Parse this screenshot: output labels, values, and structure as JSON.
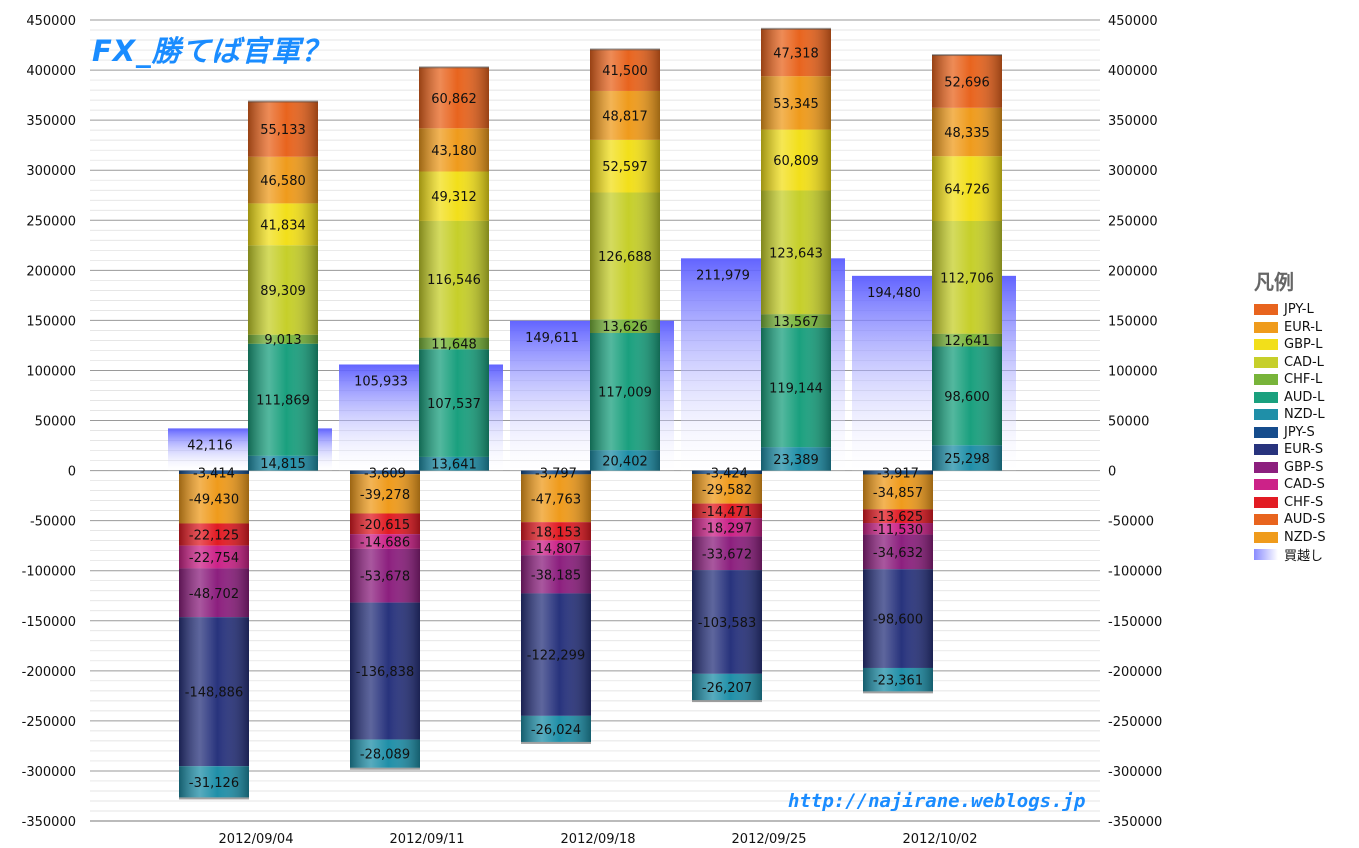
{
  "title": "FX_勝てば官軍？",
  "watermark": "http://najirane.weblogs.jp",
  "legend_title": "凡例",
  "chart_data": {
    "type": "bar",
    "stacked": true,
    "categories": [
      "2012/09/04",
      "2012/09/11",
      "2012/09/18",
      "2012/09/25",
      "2012/10/02"
    ],
    "ylim": [
      -350000,
      450000
    ],
    "y_ticks": [
      450000,
      400000,
      350000,
      300000,
      250000,
      200000,
      150000,
      100000,
      50000,
      0,
      -50000,
      -100000,
      -150000,
      -200000,
      -250000,
      -300000,
      -350000
    ],
    "grid": true,
    "legend_position": "right",
    "long_series": [
      {
        "name": "NZD-L",
        "color": "#1f8fa8",
        "values": [
          14815,
          13641,
          20402,
          23389,
          25298
        ]
      },
      {
        "name": "AUD-L",
        "color": "#1aa07e",
        "values": [
          111869,
          107537,
          117009,
          119144,
          98600
        ]
      },
      {
        "name": "CHF-L",
        "color": "#78b43a",
        "values": [
          9013,
          11648,
          13626,
          13567,
          12641
        ]
      },
      {
        "name": "CAD-L",
        "color": "#c6cf2a",
        "values": [
          89309,
          116546,
          126688,
          123643,
          112706
        ]
      },
      {
        "name": "GBP-L",
        "color": "#f2df1a",
        "values": [
          41834,
          49312,
          52597,
          60809,
          64726
        ]
      },
      {
        "name": "EUR-L",
        "color": "#ef9b1c",
        "values": [
          46580,
          43180,
          48817,
          53345,
          48335
        ]
      },
      {
        "name": "JPY-L",
        "color": "#e8641e",
        "values": [
          55133,
          60862,
          41500,
          47318,
          52696
        ]
      }
    ],
    "short_series": [
      {
        "name": "JPY-S",
        "color": "#154c8c",
        "values": [
          -3414,
          -3609,
          -3797,
          -3424,
          -3917
        ]
      },
      {
        "name": "NZD-S",
        "color": "#ef9b1c",
        "values": [
          -49430,
          -39278,
          -47763,
          -29582,
          -34857
        ]
      },
      {
        "name": "AUD-S",
        "color": "#e8641e",
        "values": [
          0,
          0,
          0,
          0,
          0
        ]
      },
      {
        "name": "CHF-S",
        "color": "#e21b23",
        "values": [
          -22125,
          -20615,
          -18153,
          -14471,
          -13625
        ]
      },
      {
        "name": "CAD-S",
        "color": "#cc2288",
        "values": [
          -22754,
          -14686,
          -14807,
          -18297,
          -11530
        ]
      },
      {
        "name": "GBP-S",
        "color": "#8c1f7e",
        "values": [
          -48702,
          -53678,
          -38185,
          -33672,
          -34632
        ]
      },
      {
        "name": "EUR-S",
        "color": "#28337d",
        "values": [
          -148886,
          -136838,
          -122299,
          -103583,
          -98600
        ]
      },
      {
        "name": "NZD-S (lower)",
        "color": "#1f8fa8",
        "values": [
          -31126,
          -28089,
          -26024,
          -26207,
          -23361
        ]
      }
    ],
    "net_series": {
      "name": "買越し",
      "color": "#6a6cff",
      "values": [
        42116,
        105933,
        149611,
        211979,
        194480
      ]
    },
    "legend": [
      {
        "name": "JPY-L",
        "color": "#e8641e"
      },
      {
        "name": "EUR-L",
        "color": "#ef9b1c"
      },
      {
        "name": "GBP-L",
        "color": "#f2df1a"
      },
      {
        "name": "CAD-L",
        "color": "#c6cf2a"
      },
      {
        "name": "CHF-L",
        "color": "#78b43a"
      },
      {
        "name": "AUD-L",
        "color": "#1aa07e"
      },
      {
        "name": "NZD-L",
        "color": "#1f8fa8"
      },
      {
        "name": "JPY-S",
        "color": "#154c8c"
      },
      {
        "name": "EUR-S",
        "color": "#28337d"
      },
      {
        "name": "GBP-S",
        "color": "#8c1f7e"
      },
      {
        "name": "CAD-S",
        "color": "#cc2288"
      },
      {
        "name": "CHF-S",
        "color": "#e21b23"
      },
      {
        "name": "AUD-S",
        "color": "#e8641e"
      },
      {
        "name": "NZD-S",
        "color": "#ef9b1c"
      },
      {
        "name": "買越し",
        "color": "#8a8cff"
      }
    ]
  }
}
